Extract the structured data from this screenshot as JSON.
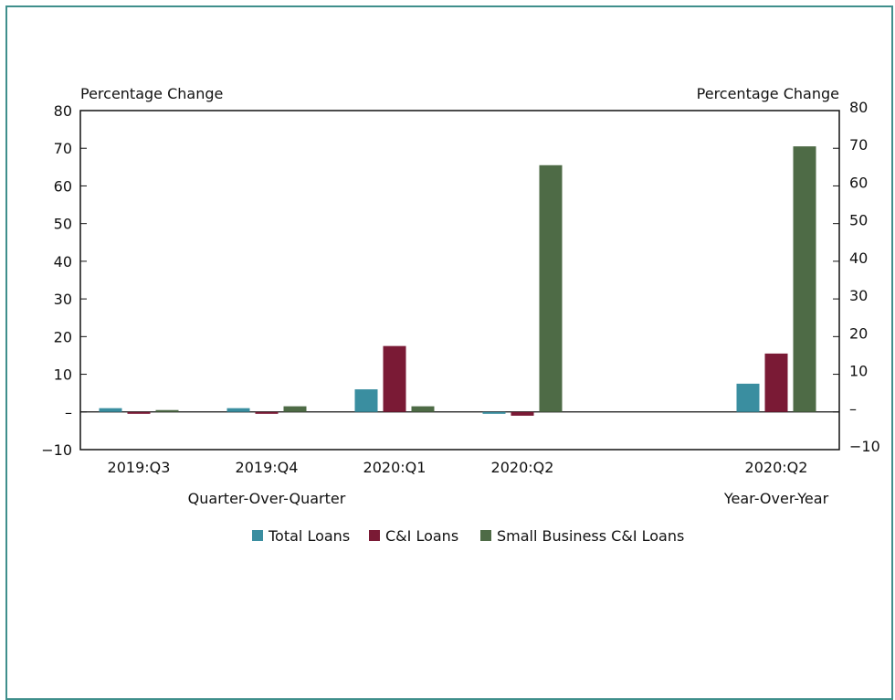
{
  "chart_data": {
    "type": "bar",
    "left_axis_label": "Percentage Change",
    "right_axis_label": "Percentage Change",
    "ylim": [
      -10,
      80
    ],
    "y_ticks": [
      "80",
      "70",
      "60",
      "50",
      "40",
      "30",
      "20",
      "10",
      "–",
      "−10"
    ],
    "right_y_ticks": [
      "80",
      "70",
      "60",
      "50",
      "40",
      "30",
      "20",
      "10",
      "–",
      "−10"
    ],
    "categories": [
      "2019:Q3",
      "2019:Q4",
      "2020:Q1",
      "2020:Q2",
      "2020:Q2"
    ],
    "group_labels": [
      "Quarter-Over-Quarter",
      "Year-Over-Year"
    ],
    "series": [
      {
        "name": "Total Loans",
        "color": "#3a8ea0",
        "values": [
          1.0,
          1.0,
          6.0,
          -0.5,
          7.5
        ]
      },
      {
        "name": "C&I Loans",
        "color": "#7a1a35",
        "values": [
          -0.5,
          -0.5,
          17.5,
          -1.0,
          15.5
        ]
      },
      {
        "name": "Small Business C&I Loans",
        "color": "#4e6b46",
        "values": [
          0.5,
          1.5,
          1.5,
          65.5,
          70.5
        ]
      }
    ],
    "legend_placement": "bottom",
    "grid": false
  }
}
